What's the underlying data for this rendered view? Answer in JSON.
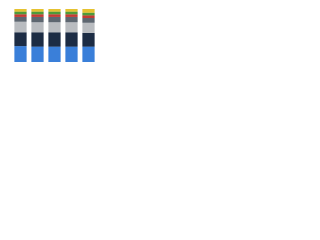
{
  "chart_data": {
    "type": "stacked-bar",
    "categories": [
      null,
      null,
      null,
      null,
      null
    ],
    "ylim": [
      0,
      100
    ],
    "series": [
      {
        "color": "#3a7fd9",
        "values": [
          30,
          29,
          29,
          29,
          29
        ]
      },
      {
        "color": "#1c2c44",
        "values": [
          26,
          27,
          27,
          27,
          26
        ]
      },
      {
        "color": "#b9bcc0",
        "values": [
          20,
          19,
          19,
          19,
          19
        ]
      },
      {
        "color": "#5d6670",
        "values": [
          9,
          10,
          10,
          10,
          9
        ]
      },
      {
        "color": "#c43a35",
        "values": [
          5,
          5,
          5,
          5,
          5
        ]
      },
      {
        "color": "#4e9a3a",
        "values": [
          5,
          5,
          5,
          5,
          5
        ]
      },
      {
        "color": "#e5c230",
        "values": [
          5,
          5,
          5,
          5,
          7
        ]
      }
    ]
  }
}
